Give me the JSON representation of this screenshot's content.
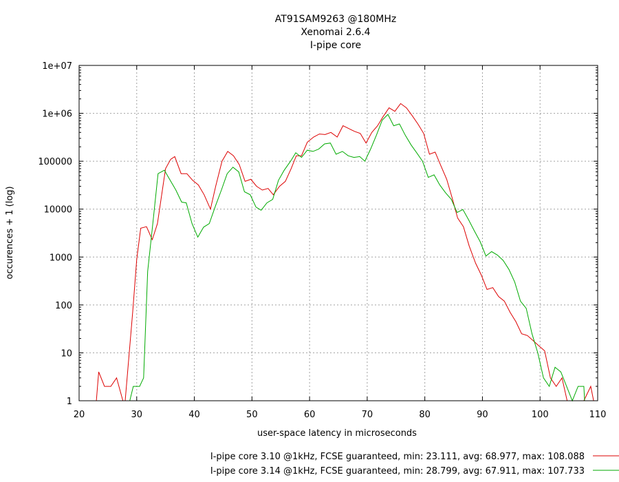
{
  "chart_data": {
    "type": "line",
    "title_lines": [
      "AT91SAM9263 @180MHz",
      "Xenomai 2.6.4",
      "I-pipe core"
    ],
    "xlabel": "user-space latency in microseconds",
    "ylabel": "occurences + 1 (log)",
    "xlim": [
      20,
      110
    ],
    "ylim": [
      1,
      10000000
    ],
    "yscale": "log",
    "grid": true,
    "legend_position": "bottom-right",
    "x_ticks": [
      20,
      30,
      40,
      50,
      60,
      70,
      80,
      90,
      100,
      110
    ],
    "y_ticks": [
      {
        "value": 1,
        "label": "1"
      },
      {
        "value": 10,
        "label": "10"
      },
      {
        "value": 100,
        "label": "100"
      },
      {
        "value": 1000,
        "label": "1000"
      },
      {
        "value": 10000,
        "label": "10000"
      },
      {
        "value": 100000,
        "label": "100000"
      },
      {
        "value": 1000000,
        "label": "1e+06"
      },
      {
        "value": 10000000,
        "label": "1e+07"
      }
    ],
    "series": [
      {
        "name": "I-pipe core 3.10 @1kHz, FCSE guaranteed, min: 23.111, avg: 68.977, max: 108.088",
        "color": "#dd0000",
        "points": [
          [
            23,
            1
          ],
          [
            23.4,
            4
          ],
          [
            24.4,
            2
          ],
          [
            25.5,
            2
          ],
          [
            26.5,
            3
          ],
          [
            27.6,
            1
          ],
          [
            28,
            1
          ],
          [
            29.3,
            70
          ],
          [
            30,
            900
          ],
          [
            30.7,
            4000
          ],
          [
            31.7,
            4300
          ],
          [
            32.7,
            2300
          ],
          [
            33.6,
            5000
          ],
          [
            35,
            70000
          ],
          [
            35.9,
            110000
          ],
          [
            36.6,
            125000
          ],
          [
            37.7,
            55000
          ],
          [
            38.7,
            55000
          ],
          [
            39.7,
            40000
          ],
          [
            40.7,
            32000
          ],
          [
            41.7,
            20000
          ],
          [
            42.8,
            10000
          ],
          [
            43.7,
            30000
          ],
          [
            44.8,
            100000
          ],
          [
            45.8,
            160000
          ],
          [
            46.8,
            130000
          ],
          [
            47.8,
            85000
          ],
          [
            48.8,
            38000
          ],
          [
            49.8,
            42000
          ],
          [
            50.8,
            30000
          ],
          [
            51.8,
            25000
          ],
          [
            52.8,
            27000
          ],
          [
            53.7,
            20000
          ],
          [
            54.8,
            30000
          ],
          [
            55.8,
            38000
          ],
          [
            56.8,
            70000
          ],
          [
            57.7,
            130000
          ],
          [
            58.6,
            130000
          ],
          [
            59.6,
            250000
          ],
          [
            60.7,
            320000
          ],
          [
            61.7,
            370000
          ],
          [
            62.7,
            360000
          ],
          [
            63.7,
            400000
          ],
          [
            64.8,
            320000
          ],
          [
            65.8,
            550000
          ],
          [
            66.8,
            480000
          ],
          [
            67.8,
            420000
          ],
          [
            68.8,
            380000
          ],
          [
            69.8,
            240000
          ],
          [
            70.8,
            400000
          ],
          [
            71.8,
            550000
          ],
          [
            72.7,
            830000
          ],
          [
            73.8,
            1300000
          ],
          [
            74.8,
            1100000
          ],
          [
            75.8,
            1600000
          ],
          [
            76.8,
            1300000
          ],
          [
            77.8,
            900000
          ],
          [
            78.8,
            600000
          ],
          [
            79.8,
            380000
          ],
          [
            80.8,
            140000
          ],
          [
            81.8,
            155000
          ],
          [
            82.8,
            80000
          ],
          [
            83.8,
            42000
          ],
          [
            84.7,
            18000
          ],
          [
            85.7,
            6500
          ],
          [
            86.7,
            4300
          ],
          [
            87.7,
            1700
          ],
          [
            88.8,
            750
          ],
          [
            89.8,
            420
          ],
          [
            90.8,
            210
          ],
          [
            91.8,
            230
          ],
          [
            92.8,
            150
          ],
          [
            93.8,
            120
          ],
          [
            94.8,
            70
          ],
          [
            95.8,
            45
          ],
          [
            96.8,
            25
          ],
          [
            97.8,
            23
          ],
          [
            98.8,
            18
          ],
          [
            99.8,
            14
          ],
          [
            100.8,
            11
          ],
          [
            101.8,
            3
          ],
          [
            102.8,
            2
          ],
          [
            103.8,
            3
          ],
          [
            104.7,
            1
          ],
          [
            106,
            1
          ],
          [
            107.6,
            1
          ],
          [
            108.8,
            2
          ],
          [
            109.3,
            1
          ]
        ]
      },
      {
        "name": "I-pipe core 3.14 @1kHz, FCSE guaranteed, min: 28.799, avg: 67.911, max: 107.733",
        "color": "#00aa00",
        "points": [
          [
            28.8,
            1
          ],
          [
            29.4,
            2
          ],
          [
            30.5,
            2
          ],
          [
            31.2,
            3
          ],
          [
            31.9,
            500
          ],
          [
            32.8,
            5000
          ],
          [
            33.7,
            55000
          ],
          [
            34.8,
            65000
          ],
          [
            35.8,
            40000
          ],
          [
            36.8,
            25000
          ],
          [
            37.8,
            14000
          ],
          [
            38.6,
            13500
          ],
          [
            39.6,
            5000
          ],
          [
            40.6,
            2600
          ],
          [
            41.6,
            4200
          ],
          [
            42.6,
            5000
          ],
          [
            43.7,
            12000
          ],
          [
            44.7,
            25000
          ],
          [
            45.7,
            55000
          ],
          [
            46.7,
            75000
          ],
          [
            47.7,
            60000
          ],
          [
            48.7,
            23000
          ],
          [
            49.7,
            20000
          ],
          [
            50.7,
            11000
          ],
          [
            51.6,
            9500
          ],
          [
            52.6,
            13500
          ],
          [
            53.6,
            16000
          ],
          [
            54.6,
            40000
          ],
          [
            55.6,
            65000
          ],
          [
            56.7,
            100000
          ],
          [
            57.6,
            150000
          ],
          [
            58.6,
            120000
          ],
          [
            59.6,
            170000
          ],
          [
            60.6,
            160000
          ],
          [
            61.6,
            180000
          ],
          [
            62.6,
            230000
          ],
          [
            63.6,
            240000
          ],
          [
            64.6,
            140000
          ],
          [
            65.7,
            160000
          ],
          [
            66.7,
            130000
          ],
          [
            67.7,
            120000
          ],
          [
            68.7,
            125000
          ],
          [
            69.6,
            100000
          ],
          [
            70.6,
            180000
          ],
          [
            71.6,
            350000
          ],
          [
            72.6,
            720000
          ],
          [
            73.6,
            950000
          ],
          [
            74.6,
            550000
          ],
          [
            75.6,
            600000
          ],
          [
            76.6,
            350000
          ],
          [
            77.6,
            220000
          ],
          [
            78.6,
            150000
          ],
          [
            79.6,
            100000
          ],
          [
            80.6,
            46000
          ],
          [
            81.6,
            52000
          ],
          [
            82.6,
            32000
          ],
          [
            83.6,
            22000
          ],
          [
            84.6,
            16000
          ],
          [
            85.6,
            8500
          ],
          [
            86.6,
            9800
          ],
          [
            87.6,
            6000
          ],
          [
            88.6,
            3500
          ],
          [
            89.6,
            2100
          ],
          [
            90.6,
            1050
          ],
          [
            91.6,
            1300
          ],
          [
            92.6,
            1100
          ],
          [
            93.6,
            850
          ],
          [
            94.6,
            550
          ],
          [
            95.6,
            300
          ],
          [
            96.6,
            120
          ],
          [
            97.6,
            85
          ],
          [
            98.6,
            25
          ],
          [
            99.6,
            10
          ],
          [
            100.6,
            3
          ],
          [
            101.6,
            2
          ],
          [
            102.6,
            5
          ],
          [
            103.6,
            4
          ],
          [
            104.6,
            2
          ],
          [
            105.6,
            1
          ],
          [
            106.6,
            2
          ],
          [
            107.6,
            2
          ],
          [
            107.73,
            1
          ]
        ]
      }
    ]
  }
}
